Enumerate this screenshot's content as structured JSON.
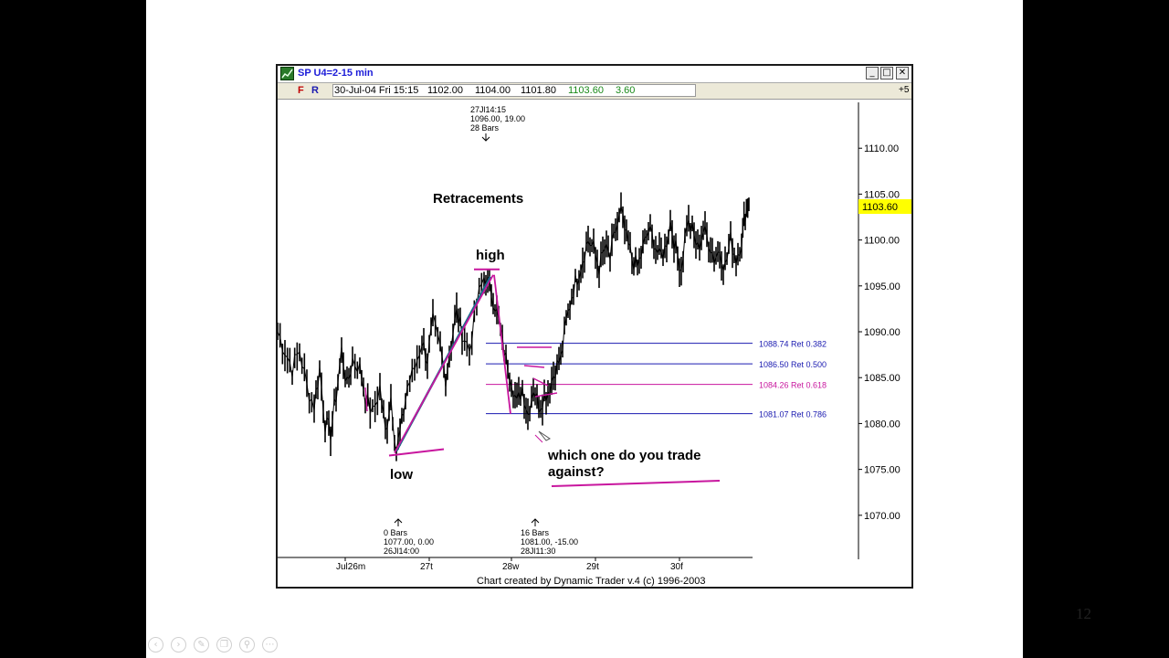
{
  "slide": {
    "page_number": "12"
  },
  "window": {
    "title": "SP U4=2-15 min",
    "buttons": {
      "minimize": "_",
      "maximize": "□",
      "close": "✕"
    }
  },
  "quote_bar": {
    "f_button": "F",
    "r_button": "R",
    "date": "30-Jul-04 Fri 15:15",
    "open": "1102.00",
    "high": "1104.00",
    "low": "1101.80",
    "close": "1103.60",
    "change": "3.60",
    "plus": "+5"
  },
  "chart_data": {
    "type": "line",
    "title": "",
    "ylim": [
      1066,
      1115
    ],
    "y_ticks": [
      "1110.00",
      "1105.00",
      "1100.00",
      "1095.00",
      "1090.00",
      "1085.00",
      "1080.00",
      "1075.00",
      "1070.00"
    ],
    "x_ticks": [
      "Jul26m",
      "27t",
      "28w",
      "29t",
      "30f"
    ],
    "current_price": "1103.60",
    "price_path": [
      [
        0,
        1090
      ],
      [
        8,
        1088
      ],
      [
        16,
        1086
      ],
      [
        24,
        1088
      ],
      [
        32,
        1084
      ],
      [
        40,
        1082
      ],
      [
        46,
        1086
      ],
      [
        52,
        1080
      ],
      [
        58,
        1079
      ],
      [
        64,
        1083
      ],
      [
        70,
        1088
      ],
      [
        76,
        1084
      ],
      [
        82,
        1087
      ],
      [
        90,
        1086
      ],
      [
        96,
        1083
      ],
      [
        104,
        1081
      ],
      [
        112,
        1084
      ],
      [
        118,
        1079
      ],
      [
        124,
        1083
      ],
      [
        130,
        1077
      ],
      [
        136,
        1080
      ],
      [
        142,
        1084
      ],
      [
        150,
        1086
      ],
      [
        158,
        1089
      ],
      [
        164,
        1087
      ],
      [
        170,
        1091
      ],
      [
        178,
        1088
      ],
      [
        184,
        1085
      ],
      [
        190,
        1089
      ],
      [
        196,
        1092
      ],
      [
        202,
        1090
      ],
      [
        210,
        1088
      ],
      [
        218,
        1093
      ],
      [
        226,
        1096
      ],
      [
        232,
        1095
      ],
      [
        238,
        1093
      ],
      [
        244,
        1090
      ],
      [
        250,
        1087
      ],
      [
        256,
        1085
      ],
      [
        262,
        1082
      ],
      [
        268,
        1084
      ],
      [
        274,
        1081
      ],
      [
        280,
        1084
      ],
      [
        286,
        1082
      ],
      [
        292,
        1083
      ],
      [
        298,
        1084
      ],
      [
        304,
        1086
      ],
      [
        310,
        1087
      ],
      [
        316,
        1091
      ],
      [
        322,
        1094
      ],
      [
        328,
        1096
      ],
      [
        334,
        1098
      ],
      [
        340,
        1100
      ],
      [
        346,
        1099
      ],
      [
        352,
        1097
      ],
      [
        358,
        1099
      ],
      [
        364,
        1098
      ],
      [
        370,
        1101
      ],
      [
        376,
        1103
      ],
      [
        382,
        1100
      ],
      [
        388,
        1098
      ],
      [
        394,
        1097
      ],
      [
        400,
        1099
      ],
      [
        406,
        1101
      ],
      [
        412,
        1100
      ],
      [
        418,
        1098
      ],
      [
        424,
        1099
      ],
      [
        430,
        1102
      ],
      [
        436,
        1099
      ],
      [
        442,
        1097
      ],
      [
        448,
        1102
      ],
      [
        454,
        1101
      ],
      [
        460,
        1099
      ],
      [
        466,
        1101
      ],
      [
        472,
        1100
      ],
      [
        478,
        1098
      ],
      [
        484,
        1099
      ],
      [
        490,
        1097
      ],
      [
        496,
        1100
      ],
      [
        502,
        1098
      ],
      [
        508,
        1100
      ],
      [
        512,
        1103
      ],
      [
        516,
        1104
      ]
    ],
    "swings": {
      "low": {
        "x": 130,
        "y": 1077
      },
      "high": {
        "x": 233,
        "y": 1096
      },
      "retrace_low": {
        "x": 284,
        "y": 1081
      }
    },
    "retracements": [
      {
        "label": "1088.74 Ret 0.382",
        "value": 1088.74,
        "color": "#1a1ab0"
      },
      {
        "label": "1086.50 Ret 0.500",
        "value": 1086.5,
        "color": "#1a1ab0"
      },
      {
        "label": "1084.26 Ret 0.618",
        "value": 1084.26,
        "color": "#c8169e"
      },
      {
        "label": "1081.07 Ret 0.786",
        "value": 1081.07,
        "color": "#1a1ab0"
      }
    ],
    "pivot_annotations": {
      "top": [
        "27Jl14:15",
        "1096.00, 19.00",
        "28 Bars"
      ],
      "low": [
        "0 Bars",
        "1077.00, 0.00",
        "26Jl14:00"
      ],
      "mid": [
        "16 Bars",
        "1081.00, -15.00",
        "28Jl11:30"
      ]
    },
    "annotations": {
      "title": "Retracements",
      "high": "high",
      "low": "low",
      "question_line1": "which one do you trade",
      "question_line2": "against?"
    },
    "footer": "Chart created by Dynamic Trader v.4  (c)  1996-2003",
    "colors": {
      "price": "#000000",
      "pen": "#c8169e",
      "swing_line": "#1a6a8a",
      "fib_blue": "#1a1ab0",
      "last_price_bg": "#ffff00"
    }
  },
  "nav_icons": [
    "back-icon",
    "forward-icon",
    "pen-icon",
    "copy-icon",
    "zoom-icon",
    "more-icon"
  ]
}
